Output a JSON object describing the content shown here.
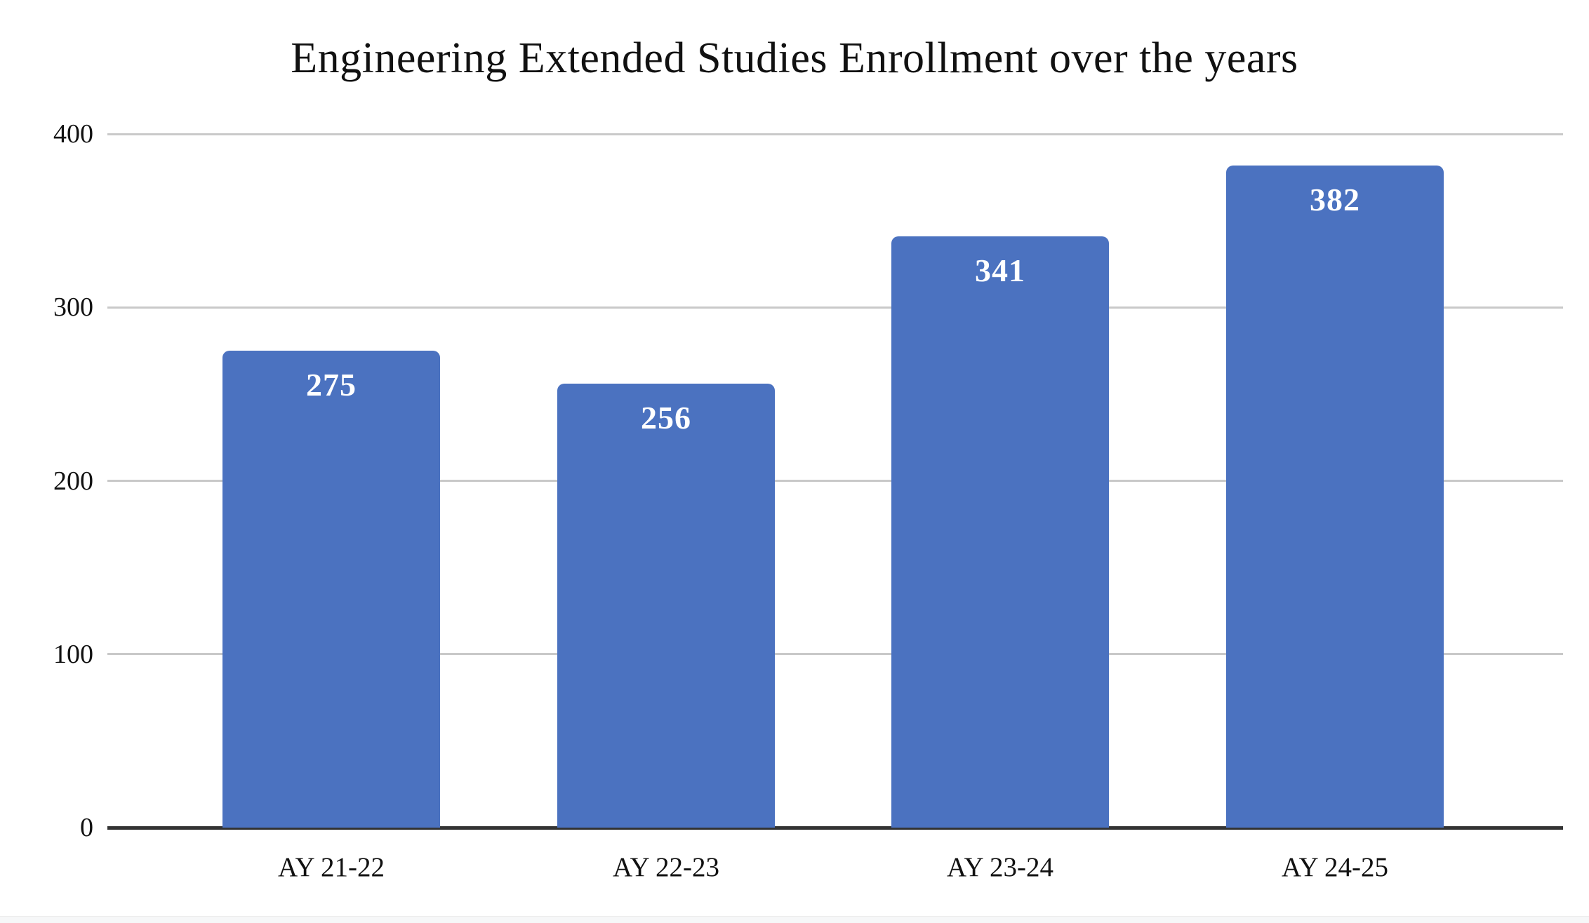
{
  "chart_data": {
    "type": "bar",
    "title": "Engineering Extended Studies Enrollment over the years",
    "categories": [
      "AY 21-22",
      "AY 22-23",
      "AY 23-24",
      "AY 24-25"
    ],
    "values": [
      275,
      256,
      341,
      382
    ],
    "value_labels": [
      "275",
      "256",
      "341",
      "382"
    ],
    "xlabel": "",
    "ylabel": "",
    "ylim": [
      0,
      400
    ],
    "yticks": [
      0,
      100,
      200,
      300,
      400
    ],
    "grid": true,
    "legend_position": "none",
    "bar_color": "#4b72c0",
    "gridline_color": "#c9c9c9",
    "axis_color": "#333333",
    "text_color": "#111111",
    "value_label_color": "#ffffff"
  }
}
